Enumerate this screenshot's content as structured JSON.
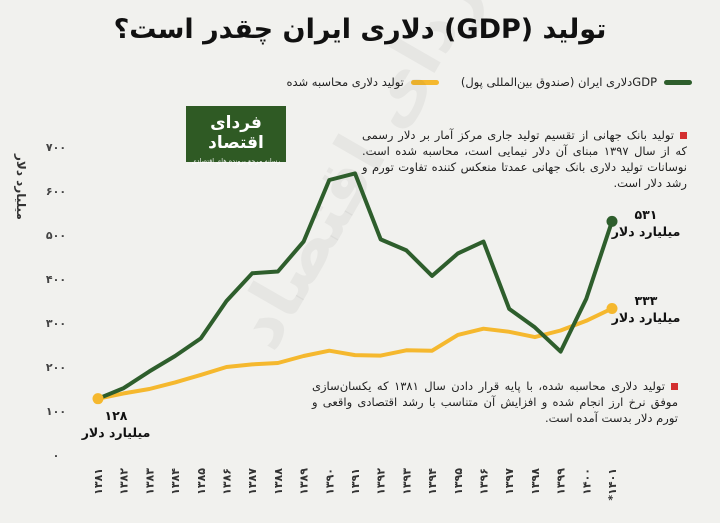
{
  "title": "تولید (GDP) دلاری ایران چقدر است؟",
  "legend": {
    "series_1": "GDPدلاری ایران (صندوق بین‌المللی پول)",
    "series_2": "تولید دلاری محاسبه شده"
  },
  "logo": {
    "main": "فردای اقتصاد",
    "sub": "رسانه مرجع پرونده های اقتصادی"
  },
  "watermark": "فردای اقتصاد",
  "notes": {
    "note_1": "تولید بانک جهانی از تقسیم تولید جاری مرکز آمار بر دلار رسمی که از سال ۱۳۹۷ مبنای آن دلار نیمایی است، محاسبه شده است. نوسانات تولید دلاری بانک جهانی عمدتا منعکس کننده تفاوت تورم و رشد دلار است.",
    "note_2": "تولید دلاری محاسبه شده، با پایه قرار دادن سال ۱۳۸۱ که یکسان‌سازی موفق نرخ ارز انجام شده و افزایش آن متناسب با رشد اقتصادی واقعی و تورم دلار بدست آمده است."
  },
  "labels": {
    "start_value": "۱۲۸",
    "start_unit": "میلیارد دلار",
    "end_green_value": "۵۳۱",
    "end_green_unit": "میلیارد دلار",
    "end_yellow_value": "۳۳۳",
    "end_yellow_unit": "میلیارد دلار"
  },
  "colors": {
    "green": "#2e5e2c",
    "yellow": "#f5b82e",
    "accent": "#d32f2f"
  },
  "chart_data": {
    "type": "line",
    "ylabel": "میلیارد دلار",
    "ylim": [
      0,
      700
    ],
    "yticks": [
      0,
      100,
      200,
      300,
      400,
      500,
      600,
      700
    ],
    "ytick_labels": [
      "۰",
      "۱۰۰",
      "۲۰۰",
      "۳۰۰",
      "۴۰۰",
      "۵۰۰",
      "۶۰۰",
      "۷۰۰"
    ],
    "categories": [
      "۱۳۸۱",
      "۱۳۸۲",
      "۱۳۸۳",
      "۱۳۸۴",
      "۱۳۸۵",
      "۱۳۸۶",
      "۱۳۸۷",
      "۱۳۸۸",
      "۱۳۸۹",
      "۱۳۹۰",
      "۱۳۹۱",
      "۱۳۹۲",
      "۱۳۹۳",
      "۱۳۹۴",
      "۱۳۹۵",
      "۱۳۹۶",
      "۱۳۹۷",
      "۱۳۹۸",
      "۱۳۹۹",
      "۱۴۰۰",
      "*۱۴۰۱"
    ],
    "series": [
      {
        "name": "GDPدلاری ایران (صندوق بین‌المللی پول)",
        "color": "#2e5e2c",
        "values": [
          128,
          152,
          190,
          225,
          265,
          350,
          413,
          417,
          485,
          625,
          640,
          490,
          465,
          407,
          458,
          485,
          332,
          290,
          235,
          355,
          531
        ]
      },
      {
        "name": "تولید دلاری محاسبه شده",
        "color": "#f5b82e",
        "values": [
          128,
          140,
          150,
          165,
          182,
          200,
          206,
          209,
          225,
          237,
          227,
          226,
          238,
          237,
          273,
          287,
          280,
          268,
          283,
          305,
          333
        ]
      }
    ]
  }
}
